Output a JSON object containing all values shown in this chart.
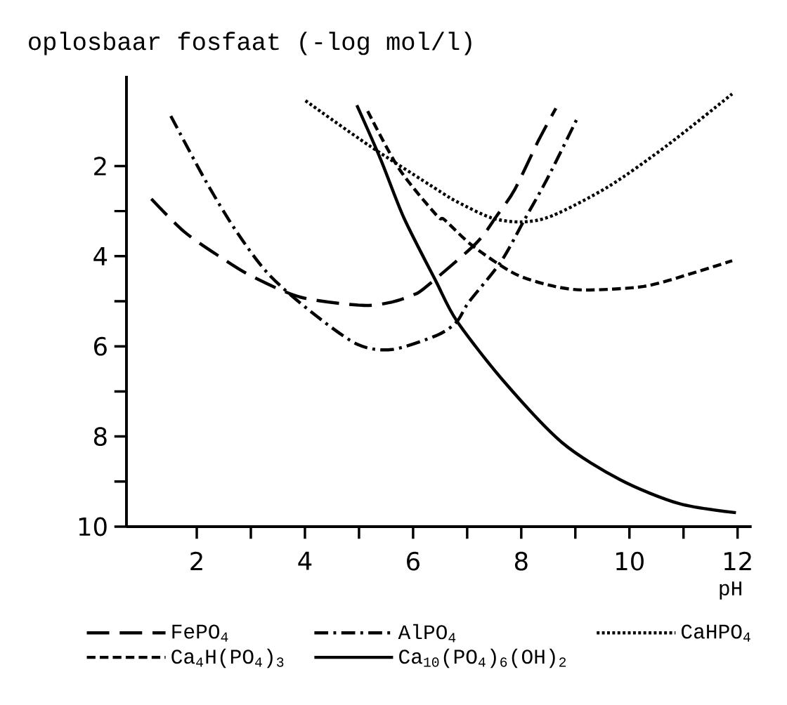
{
  "chart_data": {
    "type": "line",
    "ylabel": "oplosbaar fosfaat (-log mol/l)",
    "xlabel": "pH",
    "xlim": [
      0.7,
      12.26
    ],
    "ylim": [
      10,
      0
    ],
    "xticks": [
      2,
      4,
      6,
      8,
      10,
      12
    ],
    "yticks": [
      2,
      4,
      6,
      8,
      10
    ],
    "legend": "bottom",
    "series": [
      {
        "name": "FePO$_{4}$",
        "color": "#000000",
        "line_style": "long dashed",
        "x": [
          1.16,
          1.77,
          2.45,
          3.01,
          3.92,
          5.05,
          5.6,
          6.0,
          6.22,
          7.16,
          7.55,
          7.88,
          8.32,
          8.64
        ],
        "values": [
          2.73,
          3.46,
          4.03,
          4.44,
          4.91,
          5.09,
          5.02,
          4.86,
          4.7,
          3.72,
          3.1,
          2.52,
          1.43,
          0.72
        ]
      },
      {
        "name": "AlPO$_{4}$",
        "color": "#000000",
        "line_style": "dashdot",
        "x": [
          1.52,
          2.16,
          2.71,
          3.32,
          4.1,
          4.96,
          5.61,
          6.45,
          6.81,
          7.03,
          7.62,
          8.06,
          8.49,
          9.04
        ],
        "values": [
          0.89,
          2.32,
          3.41,
          4.39,
          5.22,
          5.95,
          6.07,
          5.75,
          5.45,
          5.02,
          4.13,
          3.19,
          2.26,
          0.93
        ]
      },
      {
        "name": "CaHPO$_{4}$",
        "color": "#000000",
        "line_style": "dotted",
        "x": [
          4.01,
          5.18,
          6.44,
          6.81,
          7.45,
          8.01,
          8.58,
          9.62,
          10.7,
          11.9
        ],
        "values": [
          0.55,
          1.54,
          2.52,
          2.79,
          3.15,
          3.24,
          3.1,
          2.45,
          1.54,
          0.4
        ]
      },
      {
        "name": "Ca$_{4}$H(PO$_{4}$)$_{3}$",
        "color": "#000000",
        "line_style": "dashed",
        "x": [
          5.16,
          5.74,
          6.44,
          6.58,
          7.1,
          7.88,
          8.58,
          9.18,
          10.27,
          11.13,
          11.9
        ],
        "values": [
          0.78,
          2.06,
          3.1,
          3.19,
          3.77,
          4.39,
          4.66,
          4.75,
          4.67,
          4.39,
          4.1
        ]
      },
      {
        "name": "Ca$_{10}$(PO$_{4}$)$_{6}$(OH)$_{2}$",
        "color": "#000000",
        "line_style": "solid",
        "x": [
          4.96,
          5.4,
          5.83,
          6.42,
          6.81,
          7.68,
          8.75,
          9.83,
          10.92,
          11.97
        ],
        "values": [
          0.65,
          1.85,
          3.15,
          4.55,
          5.44,
          6.78,
          8.13,
          8.96,
          9.49,
          9.69
        ]
      }
    ]
  }
}
